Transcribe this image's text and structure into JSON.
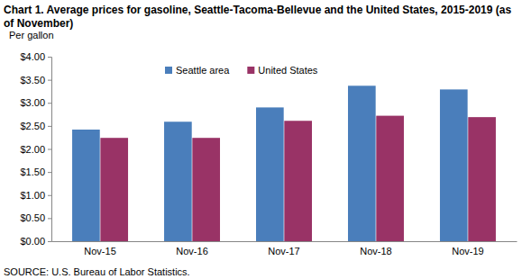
{
  "chart_data": {
    "type": "bar",
    "title": "Chart 1. Average prices for gasoline, Seattle-Tacoma-Bellevue and the United States, 2015-2019 (as of November)",
    "y_label": "Per gallon",
    "source": "SOURCE: U.S. Bureau of Labor Statistics.",
    "categories": [
      "Nov-15",
      "Nov-16",
      "Nov-17",
      "Nov-18",
      "Nov-19"
    ],
    "series": [
      {
        "name": "Seattle area",
        "color": "#4a7ebb",
        "values": [
          2.42,
          2.59,
          2.9,
          3.37,
          3.29
        ]
      },
      {
        "name": "United States",
        "color": "#993366",
        "values": [
          2.24,
          2.24,
          2.61,
          2.72,
          2.69
        ]
      }
    ],
    "ylim": [
      0,
      4
    ],
    "yticks": [
      {
        "value": 0,
        "label": "$0.00"
      },
      {
        "value": 0.5,
        "label": "$0.50"
      },
      {
        "value": 1,
        "label": "$1.00"
      },
      {
        "value": 1.5,
        "label": "$1.50"
      },
      {
        "value": 2,
        "label": "$2.00"
      },
      {
        "value": 2.5,
        "label": "$2.50"
      },
      {
        "value": 3,
        "label": "$3.00"
      },
      {
        "value": 3.5,
        "label": "$3.50"
      },
      {
        "value": 4,
        "label": "$4.00"
      }
    ],
    "grid": false,
    "legend": "top"
  }
}
